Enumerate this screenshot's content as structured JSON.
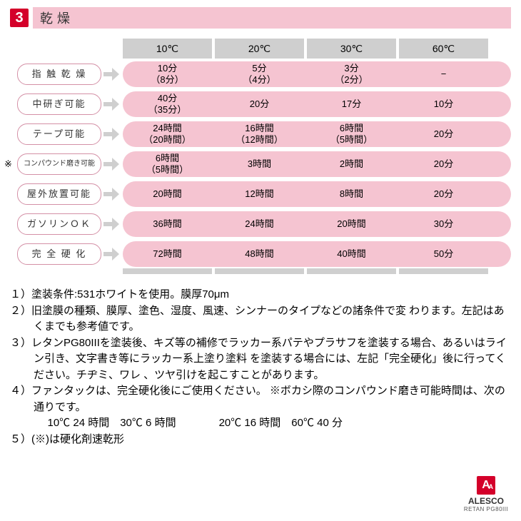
{
  "header": {
    "num": "3",
    "title": "乾燥"
  },
  "columns": [
    "10℃",
    "20℃",
    "30℃",
    "60℃"
  ],
  "rows": [
    {
      "star": "",
      "label": "指 触 乾 燥",
      "cells": [
        {
          "m": "10分",
          "s": "（8分）"
        },
        {
          "m": "5分",
          "s": "（4分）"
        },
        {
          "m": "3分",
          "s": "（2分）"
        },
        {
          "m": "−",
          "s": ""
        }
      ]
    },
    {
      "star": "",
      "label": "中研ぎ可能",
      "cells": [
        {
          "m": "40分",
          "s": "（35分）"
        },
        {
          "m": "20分",
          "s": ""
        },
        {
          "m": "17分",
          "s": ""
        },
        {
          "m": "10分",
          "s": ""
        }
      ]
    },
    {
      "star": "",
      "label": "テープ可能",
      "cells": [
        {
          "m": "24時間",
          "s": "（20時間）"
        },
        {
          "m": "16時間",
          "s": "（12時間）"
        },
        {
          "m": "6時間",
          "s": "（5時間）"
        },
        {
          "m": "20分",
          "s": ""
        }
      ]
    },
    {
      "star": "※",
      "label": "コンパウンド磨き可能",
      "cells": [
        {
          "m": "6時間",
          "s": "（5時間）"
        },
        {
          "m": "3時間",
          "s": ""
        },
        {
          "m": "2時間",
          "s": ""
        },
        {
          "m": "20分",
          "s": ""
        }
      ]
    },
    {
      "star": "",
      "label": "屋外放置可能",
      "cells": [
        {
          "m": "20時間",
          "s": ""
        },
        {
          "m": "12時間",
          "s": ""
        },
        {
          "m": "8時間",
          "s": ""
        },
        {
          "m": "20分",
          "s": ""
        }
      ]
    },
    {
      "star": "",
      "label": "ガソリンＯＫ",
      "cells": [
        {
          "m": "36時間",
          "s": ""
        },
        {
          "m": "24時間",
          "s": ""
        },
        {
          "m": "20時間",
          "s": ""
        },
        {
          "m": "30分",
          "s": ""
        }
      ]
    },
    {
      "star": "",
      "label": "完 全 硬 化",
      "cells": [
        {
          "m": "72時間",
          "s": ""
        },
        {
          "m": "48時間",
          "s": ""
        },
        {
          "m": "40時間",
          "s": ""
        },
        {
          "m": "50分",
          "s": ""
        }
      ]
    }
  ],
  "notes": {
    "n1": "１）塗装条件:531ホワイトを使用。膜厚70μm",
    "n2": "２）旧塗膜の種類、膜厚、塗色、湿度、風速、シンナーのタイプなどの諸条件で変 わります。左記はあくまでも参考値です。",
    "n3": "３）レタンPG80IIIを塗装後、キズ等の補修でラッカー系パテやプラサフを塗装する場合、あるいはライン引き、文字書き等にラッカー系上塗り塗料 を塗装する場合には、左記「完全硬化」後に行ってください。チヂミ、ワレ 、ツヤ引けを起こすことがあります。",
    "n4": "４）ファンタックは、完全硬化後にご使用ください。 ※ボカシ際のコンパウンド磨き可能時間は、次の通りです。",
    "n4b": "10℃ 24 時間　30℃ 6 時間　　　　20℃ 16 時間　60℃ 40 分",
    "n5": "５）(※)は硬化剤速乾形"
  },
  "logo": {
    "letter": "A",
    "sup": "A",
    "name": "ALESCO",
    "prod": "RETAN PG80III"
  },
  "colors": {
    "red": "#d4002a",
    "pink": "#f5c4d1",
    "pink_border": "#d490a6",
    "gray": "#cfcfcf",
    "white": "#ffffff",
    "text": "#000000"
  },
  "row_label_smallfont": [
    false,
    false,
    false,
    true,
    false,
    false,
    false
  ]
}
